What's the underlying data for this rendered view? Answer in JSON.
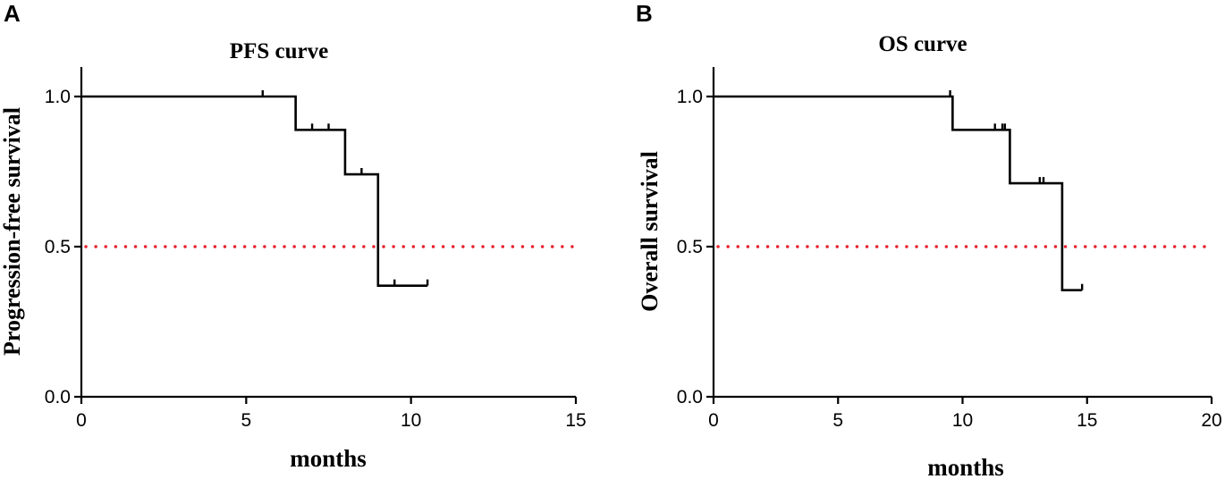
{
  "colors": {
    "reference_line": "#e8212b",
    "curve": "#000000"
  },
  "chart_data": [
    {
      "type": "line",
      "panel": "A",
      "title": "PFS curve",
      "xlabel": "months",
      "ylabel": "Progression-free survival",
      "xlim": [
        0,
        15
      ],
      "ylim": [
        0.0,
        1.1
      ],
      "x_ticks": [
        0,
        5,
        10,
        15
      ],
      "y_ticks": [
        "0.0",
        "0.5",
        "1.0"
      ],
      "grid": false,
      "reference_line": {
        "y": 0.5,
        "style": "dotted",
        "color": "#e8212b"
      },
      "steps": [
        {
          "x": 0,
          "y": 1.0
        },
        {
          "x": 6.5,
          "y": 0.889
        },
        {
          "x": 8.0,
          "y": 0.741
        },
        {
          "x": 9.0,
          "y": 0.37
        },
        {
          "x": 10.5,
          "y": 0.37
        }
      ],
      "censored": [
        {
          "x": 5.5,
          "y": 1.0
        },
        {
          "x": 7.0,
          "y": 0.889
        },
        {
          "x": 7.5,
          "y": 0.889
        },
        {
          "x": 8.5,
          "y": 0.741
        },
        {
          "x": 9.5,
          "y": 0.37
        },
        {
          "x": 10.5,
          "y": 0.37
        }
      ]
    },
    {
      "type": "line",
      "panel": "B",
      "title": "OS curve",
      "xlabel": "months",
      "ylabel": "Overall survival",
      "xlim": [
        0,
        20
      ],
      "ylim": [
        0.0,
        1.1
      ],
      "x_ticks": [
        0,
        5,
        10,
        15,
        20
      ],
      "y_ticks": [
        "0.0",
        "0.5",
        "1.0"
      ],
      "grid": false,
      "reference_line": {
        "y": 0.5,
        "style": "dotted",
        "color": "#e8212b"
      },
      "steps": [
        {
          "x": 0,
          "y": 1.0
        },
        {
          "x": 9.6,
          "y": 0.889
        },
        {
          "x": 11.9,
          "y": 0.711
        },
        {
          "x": 14.0,
          "y": 0.355
        },
        {
          "x": 14.8,
          "y": 0.355
        }
      ],
      "censored": [
        {
          "x": 9.5,
          "y": 1.0
        },
        {
          "x": 11.3,
          "y": 0.889
        },
        {
          "x": 11.6,
          "y": 0.889
        },
        {
          "x": 11.7,
          "y": 0.889
        },
        {
          "x": 13.1,
          "y": 0.711
        },
        {
          "x": 13.25,
          "y": 0.711
        },
        {
          "x": 14.8,
          "y": 0.355
        }
      ]
    }
  ]
}
